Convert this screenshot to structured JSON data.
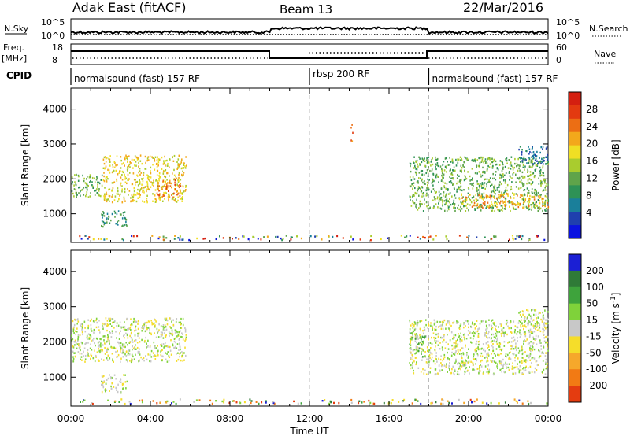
{
  "header": {
    "station": "Adak East (fitACF)",
    "beam": "Beam 13",
    "date": "22/Mar/2016"
  },
  "labels": {
    "nsky": "N.Sky",
    "nsearch": "N.Search",
    "freq": "Freq.",
    "freq_unit": "[MHz]",
    "nave": "Nave",
    "cpid": "CPID",
    "nsky_ticks": [
      "10^5",
      "10^0"
    ],
    "nsearch_ticks": [
      "10^5",
      "10^0"
    ],
    "freq_ticks": [
      "18",
      "8"
    ],
    "nave_ticks": [
      "60",
      "0"
    ]
  },
  "cpid_segments": [
    {
      "label": "normalsound (fast) 157 RF",
      "start_h": 0,
      "end_h": 12
    },
    {
      "label": "rbsp 200 RF",
      "start_h": 12,
      "end_h": 18
    },
    {
      "label": "normalsound (fast) 157 RF",
      "start_h": 18,
      "end_h": 24
    }
  ],
  "chart_data": [
    {
      "type": "heatmap",
      "name": "power",
      "xlabel": "",
      "ylabel": "Slant Range [km]",
      "xlim": [
        0,
        24
      ],
      "ylim": [
        180,
        4600
      ],
      "y_ticks": [
        1000,
        2000,
        3000,
        4000
      ],
      "colorbar": {
        "label": "Power [dB]",
        "ticks": [
          "4",
          "8",
          "12",
          "16",
          "20",
          "24",
          "28"
        ],
        "colors": [
          "#0a12e0",
          "#1f3fae",
          "#1a7f9a",
          "#2e9256",
          "#5fa44a",
          "#a9cc2e",
          "#f0df24",
          "#f3a81b",
          "#ec6e14",
          "#e33a10",
          "#d41f10"
        ]
      },
      "regions": [
        {
          "x0": 0.0,
          "x1": 1.6,
          "y0": 1500,
          "y1": 2150,
          "level": 4
        },
        {
          "x0": 1.6,
          "x1": 5.8,
          "y0": 1350,
          "y1": 2700,
          "level": 6
        },
        {
          "x0": 4.3,
          "x1": 5.5,
          "y0": 1500,
          "y1": 2000,
          "level": 8
        },
        {
          "x0": 1.5,
          "x1": 2.8,
          "y0": 650,
          "y1": 1100,
          "level": 3
        },
        {
          "x0": 17.0,
          "x1": 24.0,
          "y0": 1100,
          "y1": 2650,
          "level": 4
        },
        {
          "x0": 19.5,
          "x1": 24.0,
          "y0": 1200,
          "y1": 1600,
          "level": 7
        },
        {
          "x0": 22.5,
          "x1": 24.0,
          "y0": 2450,
          "y1": 2950,
          "level": 2
        },
        {
          "x0": 14.05,
          "x1": 14.15,
          "y0": 3100,
          "y1": 3750,
          "level": 8
        }
      ]
    },
    {
      "type": "heatmap",
      "name": "velocity",
      "xlabel": "Time UT",
      "ylabel": "Slant Range [km]",
      "xlim": [
        0,
        24
      ],
      "ylim": [
        180,
        4600
      ],
      "x_ticks": [
        "00:00",
        "04:00",
        "08:00",
        "12:00",
        "16:00",
        "20:00",
        "00:00"
      ],
      "y_ticks": [
        1000,
        2000,
        3000,
        4000
      ],
      "colorbar": {
        "label": "Velocity [m s^-1]",
        "ticks": [
          "200",
          "100",
          "50",
          "15",
          "-15",
          "-50",
          "-100",
          "-200"
        ],
        "colors": [
          "#1b1fd4",
          "#2f7a37",
          "#3ea33c",
          "#7fd23a",
          "#c8c8c8",
          "#f5dd2a",
          "#f6a82b",
          "#f27a14",
          "#e43c10"
        ]
      },
      "regions": [
        {
          "x0": 0.0,
          "x1": 5.8,
          "y0": 1450,
          "y1": 2700,
          "level": 4
        },
        {
          "x0": 1.5,
          "x1": 2.8,
          "y0": 600,
          "y1": 1100,
          "level": 4
        },
        {
          "x0": 17.0,
          "x1": 24.0,
          "y0": 1100,
          "y1": 2650,
          "level": 4
        },
        {
          "x0": 17.0,
          "x1": 17.8,
          "y0": 1600,
          "y1": 2300,
          "level": 3
        },
        {
          "x0": 22.5,
          "x1": 24.0,
          "y0": 2450,
          "y1": 2950,
          "level": 4
        }
      ]
    }
  ]
}
